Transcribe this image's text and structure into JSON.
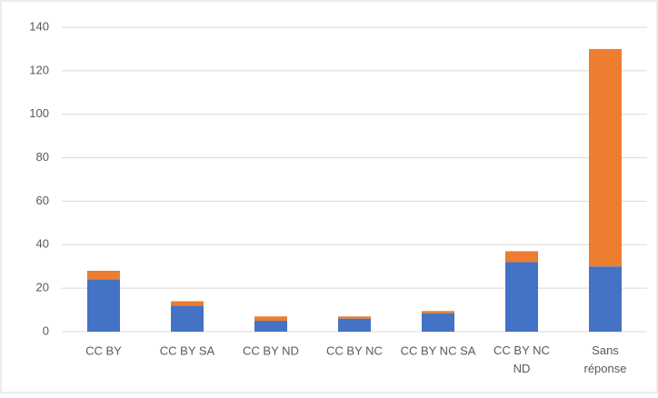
{
  "chart_data": {
    "type": "stacked_bar",
    "categories": [
      "CC BY",
      "CC BY SA",
      "CC BY ND",
      "CC BY NC",
      "CC BY NC SA",
      "CC BY NC\nND",
      "Sans\nréponse"
    ],
    "series": [
      {
        "color": "#4472c4",
        "values": [
          24,
          12,
          5,
          6,
          8.5,
          32,
          30
        ]
      },
      {
        "color": "#ed7d31",
        "values": [
          4,
          2,
          2,
          1,
          1,
          5,
          100
        ]
      }
    ],
    "ylim": [
      0,
      140
    ],
    "yticks": [
      0,
      20,
      40,
      60,
      80,
      100,
      120,
      140
    ],
    "grid": true
  }
}
